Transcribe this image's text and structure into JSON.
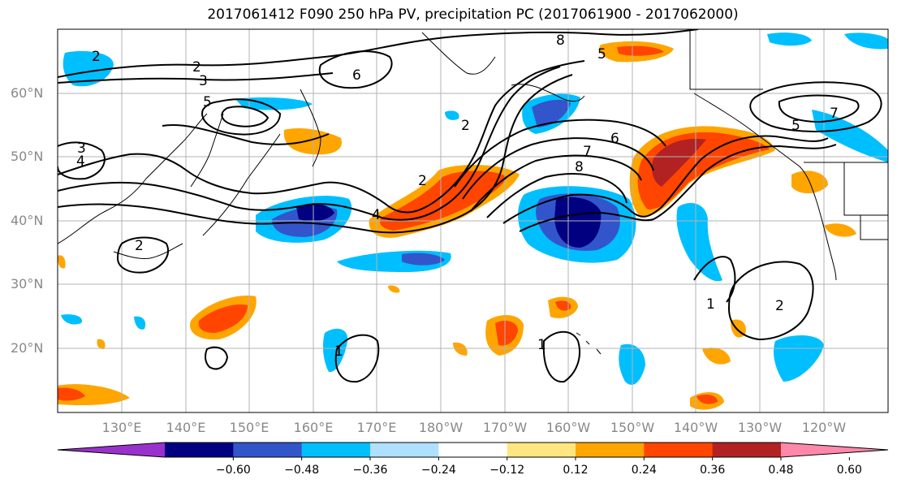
{
  "title": "2017061412 F090 250 hPa PV, precipitation PC (2017061900 - 2017062000)",
  "lat_labels": [
    "60°N",
    "50°N",
    "40°N",
    "30°N",
    "20°N"
  ],
  "lon_labels": [
    "130°E",
    "140°E",
    "150°E",
    "160°E",
    "170°E",
    "180°W",
    "170°W",
    "160°W",
    "150°W",
    "140°W",
    "130°W",
    "120°W"
  ],
  "colorbar": {
    "ticks": [
      "−0.60",
      "−0.48",
      "−0.36",
      "−0.24",
      "−0.12",
      "0.12",
      "0.24",
      "0.36",
      "0.48",
      "0.60"
    ],
    "colors": [
      "#9932cc",
      "#000080",
      "#3355cc",
      "#00bfff",
      "#b0e0ff",
      "#ffffff",
      "#ffe680",
      "#ffa500",
      "#ff4500",
      "#b22222",
      "#ff88aa"
    ]
  },
  "contour_labels": [
    "2",
    "3",
    "4",
    "5",
    "6",
    "7",
    "8",
    "1"
  ],
  "colors": {
    "grid": "#b3b3b3",
    "contour": "#000000",
    "coast": "#000000"
  }
}
